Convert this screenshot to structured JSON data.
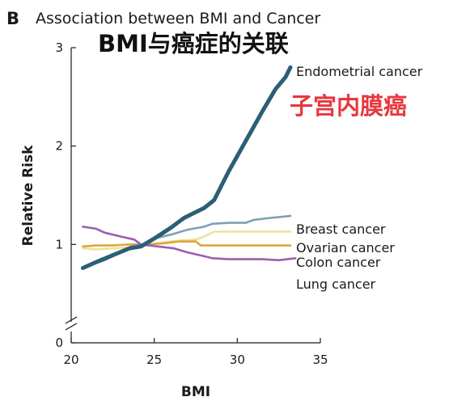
{
  "panel_letter": "B",
  "overlay": {
    "title": "BMI与癌症的关联",
    "highlight": "子宫内膜癌"
  },
  "colors": {
    "endometrial": "#2a5f77",
    "breast": "#7e9fb4",
    "ovarian": "#ede29a",
    "colon": "#e0a63a",
    "lung": "#9b5fae",
    "highlight_text": "#e8373d"
  },
  "chart_data": {
    "type": "line",
    "title": "Association between BMI and Cancer",
    "xlabel": "BMI",
    "ylabel": "Relative Risk",
    "xlim": [
      20,
      35
    ],
    "ylim": [
      0,
      3
    ],
    "y_axis_break": true,
    "xticks": [
      20,
      25,
      30,
      35
    ],
    "yticks": [
      0,
      1,
      2,
      3
    ],
    "grid": false,
    "legend": "inline labels at right end of each line",
    "series": [
      {
        "name": "Endometrial cancer",
        "key": "endometrial",
        "x": [
          20.7,
          21.5,
          22.5,
          23.5,
          24.2,
          25.0,
          26.0,
          26.8,
          28.0,
          28.6,
          29.5,
          30.5,
          31.5,
          32.3,
          32.9,
          33.2
        ],
        "y": [
          0.76,
          0.82,
          0.89,
          0.96,
          0.98,
          1.06,
          1.17,
          1.27,
          1.37,
          1.45,
          1.75,
          2.05,
          2.35,
          2.58,
          2.7,
          2.8
        ]
      },
      {
        "name": "Breast cancer",
        "key": "breast",
        "x": [
          21.0,
          22.0,
          23.0,
          23.6,
          24.3,
          25.0,
          26.0,
          27.0,
          28.0,
          28.5,
          29.5,
          30.5,
          31.0,
          32.0,
          33.2
        ],
        "y": [
          0.78,
          0.84,
          0.92,
          0.98,
          1.0,
          1.06,
          1.1,
          1.15,
          1.18,
          1.21,
          1.22,
          1.22,
          1.25,
          1.27,
          1.29
        ]
      },
      {
        "name": "Ovarian cancer",
        "key": "ovarian",
        "x": [
          20.7,
          21.5,
          22.5,
          23.5,
          24.5,
          25.5,
          26.5,
          27.5,
          28.0,
          28.6,
          29.5,
          30.5,
          31.5,
          33.2
        ],
        "y": [
          0.96,
          0.95,
          0.96,
          0.97,
          0.99,
          1.02,
          1.04,
          1.05,
          1.08,
          1.13,
          1.13,
          1.13,
          1.13,
          1.13
        ]
      },
      {
        "name": "Colon cancer",
        "key": "colon",
        "x": [
          20.7,
          21.5,
          22.5,
          23.5,
          24.5,
          25.5,
          26.5,
          27.5,
          27.8,
          28.5,
          29.5,
          30.5,
          31.5,
          33.2
        ],
        "y": [
          0.98,
          0.99,
          0.99,
          1.0,
          1.0,
          1.01,
          1.03,
          1.03,
          0.99,
          0.99,
          0.99,
          0.99,
          0.99,
          0.99
        ]
      },
      {
        "name": "Lung cancer",
        "key": "lung",
        "x": [
          20.7,
          21.5,
          22.0,
          23.0,
          23.8,
          24.2,
          25.2,
          26.2,
          27.0,
          28.0,
          28.5,
          29.5,
          30.5,
          31.5,
          32.5,
          33.5
        ],
        "y": [
          1.18,
          1.16,
          1.12,
          1.08,
          1.05,
          1.0,
          0.98,
          0.96,
          0.92,
          0.88,
          0.86,
          0.85,
          0.85,
          0.85,
          0.84,
          0.86
        ]
      }
    ]
  }
}
